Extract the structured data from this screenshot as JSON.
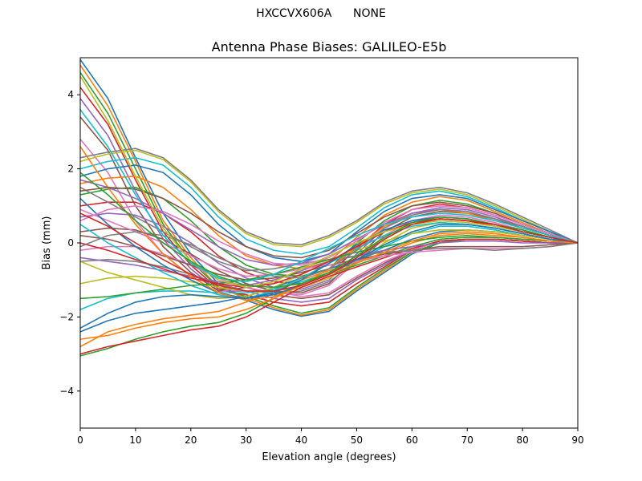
{
  "figure": {
    "suptitle": "HXCCVX606A      NONE"
  },
  "chart_data": {
    "type": "line",
    "title": "Antenna Phase Biases: GALILEO-E5b",
    "xlabel": "Elevation angle (degrees)",
    "ylabel": "Bias (mm)",
    "xlim": [
      0,
      90
    ],
    "ylim": [
      -5,
      5
    ],
    "xticks": [
      0,
      10,
      20,
      30,
      40,
      50,
      60,
      70,
      80,
      90
    ],
    "yticks": [
      -4,
      -2,
      0,
      2,
      4
    ],
    "ytick_labels": [
      "−4",
      "−2",
      "0",
      "2",
      "4"
    ],
    "grid": false,
    "legend": "none",
    "x": [
      0,
      5,
      10,
      15,
      20,
      25,
      30,
      35,
      40,
      45,
      50,
      55,
      60,
      65,
      70,
      75,
      80,
      85,
      90
    ],
    "color_cycle": [
      "#1f77b4",
      "#ff7f0e",
      "#2ca02c",
      "#d62728",
      "#9467bd",
      "#8c564b",
      "#e377c2",
      "#7f7f7f",
      "#bcbd22",
      "#17becf"
    ],
    "series": [
      {
        "values": [
          4.95,
          3.9,
          2.3,
          0.8,
          -0.3,
          -1.1,
          -1.55,
          -1.8,
          -1.98,
          -1.85,
          -1.3,
          -0.8,
          -0.3,
          0.0,
          0.1,
          0.1,
          0.05,
          0.0,
          0.0
        ]
      },
      {
        "values": [
          4.8,
          3.7,
          2.2,
          0.6,
          -0.4,
          -1.2,
          -1.5,
          -1.75,
          -1.95,
          -1.8,
          -1.25,
          -0.75,
          -0.25,
          0.0,
          0.1,
          0.1,
          0.05,
          0.0,
          0.0
        ]
      },
      {
        "values": [
          4.6,
          3.5,
          2.0,
          0.5,
          -0.5,
          -1.2,
          -1.45,
          -1.7,
          -1.9,
          -1.75,
          -1.2,
          -0.7,
          -0.25,
          0.0,
          0.1,
          0.1,
          0.05,
          0.0,
          0.0
        ]
      },
      {
        "values": [
          4.2,
          3.2,
          1.7,
          0.3,
          -0.6,
          -1.25,
          -1.4,
          -1.6,
          -1.7,
          -1.6,
          -1.1,
          -0.65,
          -0.2,
          0.05,
          0.1,
          0.1,
          0.05,
          0.0,
          0.0
        ]
      },
      {
        "values": [
          3.9,
          2.9,
          1.4,
          0.1,
          -0.7,
          -1.3,
          -1.3,
          -1.5,
          -1.6,
          -1.5,
          -1.0,
          -0.6,
          -0.2,
          0.05,
          0.1,
          0.1,
          0.05,
          0.0,
          0.0
        ]
      },
      {
        "values": [
          3.4,
          2.5,
          1.0,
          -0.1,
          -0.8,
          -1.3,
          -1.2,
          -1.4,
          -1.5,
          -1.4,
          -0.95,
          -0.55,
          -0.2,
          0.05,
          0.1,
          0.1,
          0.05,
          0.0,
          0.0
        ]
      },
      {
        "values": [
          2.8,
          1.9,
          0.6,
          -0.3,
          -0.9,
          -1.35,
          -1.1,
          -1.3,
          -1.45,
          -1.35,
          -0.9,
          -0.5,
          -0.2,
          0.05,
          0.1,
          0.1,
          0.05,
          0.0,
          0.0
        ]
      },
      {
        "values": [
          2.3,
          2.45,
          2.55,
          2.3,
          1.7,
          0.9,
          0.3,
          0.0,
          -0.05,
          0.2,
          0.6,
          1.1,
          1.4,
          1.5,
          1.35,
          1.05,
          0.7,
          0.35,
          0.0
        ]
      },
      {
        "values": [
          2.2,
          2.4,
          2.5,
          2.25,
          1.65,
          0.85,
          0.25,
          -0.05,
          -0.1,
          0.15,
          0.55,
          1.05,
          1.35,
          1.45,
          1.3,
          1.0,
          0.65,
          0.3,
          0.0
        ]
      },
      {
        "values": [
          2.0,
          2.2,
          2.3,
          2.1,
          1.5,
          0.7,
          0.1,
          -0.2,
          -0.3,
          -0.1,
          0.4,
          0.95,
          1.3,
          1.4,
          1.25,
          0.95,
          0.6,
          0.3,
          0.0
        ]
      },
      {
        "values": [
          1.8,
          2.0,
          2.1,
          1.9,
          1.3,
          0.5,
          -0.1,
          -0.4,
          -0.5,
          -0.3,
          0.3,
          0.85,
          1.2,
          1.3,
          1.2,
          0.9,
          0.6,
          0.3,
          0.0
        ]
      },
      {
        "values": [
          1.6,
          1.75,
          1.8,
          1.5,
          0.9,
          0.2,
          -0.35,
          -0.6,
          -0.7,
          -0.5,
          0.15,
          0.75,
          1.1,
          1.25,
          1.15,
          0.85,
          0.55,
          0.25,
          0.0
        ]
      },
      {
        "values": [
          1.3,
          1.45,
          1.5,
          1.2,
          0.6,
          -0.1,
          -0.6,
          -0.85,
          -0.9,
          -0.7,
          0.0,
          0.6,
          1.0,
          1.15,
          1.05,
          0.8,
          0.5,
          0.25,
          0.0
        ]
      },
      {
        "values": [
          1.0,
          1.1,
          1.1,
          0.8,
          0.3,
          -0.35,
          -0.8,
          -1.05,
          -1.1,
          -0.85,
          -0.15,
          0.5,
          0.9,
          1.05,
          0.95,
          0.75,
          0.5,
          0.25,
          0.0
        ]
      },
      {
        "values": [
          0.7,
          0.8,
          0.75,
          0.45,
          0.0,
          -0.55,
          -0.95,
          -1.2,
          -1.25,
          -1.0,
          -0.3,
          0.4,
          0.8,
          0.95,
          0.9,
          0.7,
          0.45,
          0.2,
          0.0
        ]
      },
      {
        "values": [
          0.3,
          0.4,
          0.35,
          0.1,
          -0.3,
          -0.75,
          -1.1,
          -1.3,
          -1.35,
          -1.1,
          -0.4,
          0.3,
          0.7,
          0.85,
          0.8,
          0.65,
          0.4,
          0.2,
          0.0
        ]
      },
      {
        "values": [
          -0.2,
          -0.1,
          -0.1,
          -0.3,
          -0.6,
          -0.95,
          -1.2,
          -1.35,
          -1.4,
          -1.15,
          -0.5,
          0.2,
          0.6,
          0.75,
          0.7,
          0.55,
          0.35,
          0.15,
          0.0
        ]
      },
      {
        "values": [
          -0.5,
          -0.45,
          -0.5,
          -0.65,
          -0.85,
          -1.1,
          -1.3,
          -1.35,
          -1.3,
          -1.05,
          -0.5,
          0.1,
          0.5,
          0.65,
          0.6,
          0.5,
          0.3,
          0.15,
          0.0
        ]
      },
      {
        "values": [
          -1.1,
          -0.95,
          -0.9,
          -0.95,
          -1.05,
          -1.2,
          -1.3,
          -1.3,
          -1.2,
          -0.95,
          -0.55,
          0.0,
          0.4,
          0.55,
          0.5,
          0.4,
          0.25,
          0.1,
          0.0
        ]
      },
      {
        "values": [
          -1.8,
          -1.5,
          -1.35,
          -1.3,
          -1.3,
          -1.35,
          -1.35,
          -1.25,
          -1.05,
          -0.8,
          -0.5,
          -0.1,
          0.25,
          0.45,
          0.45,
          0.35,
          0.2,
          0.1,
          0.0
        ]
      },
      {
        "values": [
          -2.4,
          -2.1,
          -1.9,
          -1.8,
          -1.7,
          -1.6,
          -1.45,
          -1.2,
          -0.95,
          -0.7,
          -0.45,
          -0.2,
          0.1,
          0.3,
          0.35,
          0.3,
          0.2,
          0.1,
          0.0
        ]
      },
      {
        "values": [
          -2.8,
          -2.4,
          -2.2,
          -2.05,
          -1.95,
          -1.85,
          -1.6,
          -1.3,
          -1.0,
          -0.75,
          -0.5,
          -0.3,
          0.0,
          0.2,
          0.25,
          0.2,
          0.15,
          0.05,
          0.0
        ]
      },
      {
        "values": [
          -3.05,
          -2.85,
          -2.6,
          -2.4,
          -2.25,
          -2.15,
          -1.9,
          -1.5,
          -1.1,
          -0.85,
          -0.6,
          -0.35,
          -0.1,
          0.1,
          0.15,
          0.15,
          0.1,
          0.05,
          0.0
        ]
      },
      {
        "values": [
          -3.0,
          -2.8,
          -2.65,
          -2.5,
          -2.35,
          -2.25,
          -2.0,
          -1.6,
          -1.2,
          -0.9,
          -0.65,
          -0.4,
          -0.15,
          0.05,
          0.1,
          0.1,
          0.05,
          0.0,
          0.0
        ]
      },
      {
        "values": [
          -0.4,
          -0.5,
          -0.6,
          -0.75,
          -0.9,
          -1.05,
          -1.15,
          -1.0,
          -0.75,
          -0.5,
          -0.35,
          -0.2,
          -0.1,
          0.0,
          0.05,
          0.05,
          0.0,
          0.0,
          0.0
        ]
      },
      {
        "values": [
          0.2,
          0.1,
          -0.1,
          -0.35,
          -0.6,
          -0.85,
          -1.0,
          -0.95,
          -0.8,
          -0.6,
          -0.45,
          -0.3,
          -0.2,
          -0.1,
          -0.1,
          -0.1,
          -0.1,
          -0.05,
          0.0
        ]
      },
      {
        "values": [
          0.9,
          0.6,
          0.3,
          0.0,
          -0.35,
          -0.7,
          -0.9,
          -0.85,
          -0.7,
          -0.6,
          -0.5,
          -0.35,
          -0.25,
          -0.2,
          -0.15,
          -0.15,
          -0.15,
          -0.1,
          0.0
        ]
      },
      {
        "values": [
          1.5,
          1.1,
          0.7,
          0.3,
          -0.1,
          -0.5,
          -0.75,
          -0.7,
          -0.55,
          -0.45,
          -0.35,
          -0.25,
          -0.2,
          -0.15,
          -0.15,
          -0.2,
          -0.15,
          -0.1,
          0.0
        ]
      },
      {
        "values": [
          -0.5,
          -0.8,
          -1.0,
          -1.2,
          -1.4,
          -1.5,
          -1.45,
          -1.2,
          -0.85,
          -0.5,
          -0.2,
          0.05,
          0.25,
          0.35,
          0.35,
          0.3,
          0.2,
          0.1,
          0.0
        ]
      },
      {
        "values": [
          0.5,
          0.0,
          -0.4,
          -0.8,
          -1.15,
          -1.4,
          -1.5,
          -1.3,
          -0.95,
          -0.55,
          -0.15,
          0.2,
          0.45,
          0.55,
          0.5,
          0.4,
          0.25,
          0.1,
          0.0
        ]
      },
      {
        "values": [
          1.2,
          0.5,
          -0.1,
          -0.6,
          -1.0,
          -1.35,
          -1.5,
          -1.35,
          -1.0,
          -0.55,
          -0.05,
          0.35,
          0.6,
          0.7,
          0.65,
          0.5,
          0.3,
          0.15,
          0.0
        ]
      },
      {
        "values": [
          2.6,
          1.5,
          0.5,
          -0.3,
          -0.9,
          -1.35,
          -1.55,
          -1.45,
          -1.15,
          -0.7,
          -0.1,
          0.45,
          0.8,
          0.9,
          0.8,
          0.6,
          0.4,
          0.2,
          0.0
        ]
      },
      {
        "values": [
          -1.5,
          -1.45,
          -1.35,
          -1.25,
          -1.15,
          -1.1,
          -1.0,
          -0.85,
          -0.65,
          -0.45,
          -0.25,
          -0.1,
          0.05,
          0.15,
          0.2,
          0.15,
          0.1,
          0.05,
          0.0
        ]
      },
      {
        "values": [
          0.0,
          -0.2,
          -0.45,
          -0.7,
          -0.95,
          -1.1,
          -1.2,
          -1.1,
          -0.85,
          -0.5,
          -0.1,
          0.3,
          0.55,
          0.65,
          0.6,
          0.45,
          0.3,
          0.15,
          0.0
        ]
      },
      {
        "values": [
          1.7,
          1.5,
          1.2,
          0.8,
          0.35,
          -0.1,
          -0.45,
          -0.6,
          -0.55,
          -0.3,
          0.1,
          0.5,
          0.8,
          0.9,
          0.85,
          0.65,
          0.45,
          0.2,
          0.0
        ]
      },
      {
        "values": [
          1.4,
          1.5,
          1.45,
          1.2,
          0.8,
          0.3,
          -0.1,
          -0.35,
          -0.4,
          -0.2,
          0.25,
          0.7,
          1.0,
          1.1,
          1.0,
          0.8,
          0.5,
          0.25,
          0.0
        ]
      },
      {
        "values": [
          0.6,
          0.9,
          1.0,
          0.85,
          0.5,
          0.05,
          -0.3,
          -0.55,
          -0.6,
          -0.4,
          0.05,
          0.55,
          0.9,
          1.0,
          0.95,
          0.75,
          0.5,
          0.25,
          0.0
        ]
      },
      {
        "values": [
          -0.1,
          0.2,
          0.3,
          0.2,
          -0.05,
          -0.4,
          -0.7,
          -0.9,
          -0.95,
          -0.7,
          -0.2,
          0.4,
          0.75,
          0.9,
          0.85,
          0.65,
          0.45,
          0.2,
          0.0
        ]
      },
      {
        "values": [
          4.5,
          3.3,
          1.8,
          0.4,
          -0.5,
          -1.0,
          -1.2,
          -1.05,
          -0.7,
          -0.35,
          0.0,
          0.3,
          0.5,
          0.6,
          0.55,
          0.45,
          0.3,
          0.15,
          0.0
        ]
      },
      {
        "values": [
          3.6,
          2.6,
          1.3,
          0.2,
          -0.55,
          -0.95,
          -1.05,
          -0.85,
          -0.5,
          -0.15,
          0.2,
          0.5,
          0.7,
          0.8,
          0.75,
          0.6,
          0.4,
          0.2,
          0.0
        ]
      },
      {
        "values": [
          -2.3,
          -1.9,
          -1.6,
          -1.45,
          -1.4,
          -1.45,
          -1.5,
          -1.4,
          -1.15,
          -0.85,
          -0.45,
          -0.05,
          0.3,
          0.5,
          0.5,
          0.4,
          0.25,
          0.1,
          0.0
        ]
      },
      {
        "values": [
          -2.6,
          -2.5,
          -2.3,
          -2.15,
          -2.05,
          -2.0,
          -1.8,
          -1.5,
          -1.15,
          -0.85,
          -0.55,
          -0.25,
          0.05,
          0.25,
          0.3,
          0.25,
          0.15,
          0.05,
          0.0
        ]
      },
      {
        "values": [
          1.9,
          1.3,
          0.6,
          0.0,
          -0.5,
          -0.9,
          -1.15,
          -1.2,
          -1.1,
          -0.8,
          -0.35,
          0.15,
          0.55,
          0.7,
          0.65,
          0.5,
          0.35,
          0.15,
          0.0
        ]
      },
      {
        "values": [
          0.8,
          0.45,
          0.0,
          -0.45,
          -0.85,
          -1.15,
          -1.3,
          -1.3,
          -1.15,
          -0.85,
          -0.4,
          0.1,
          0.5,
          0.65,
          0.6,
          0.5,
          0.3,
          0.15,
          0.0
        ]
      }
    ]
  }
}
